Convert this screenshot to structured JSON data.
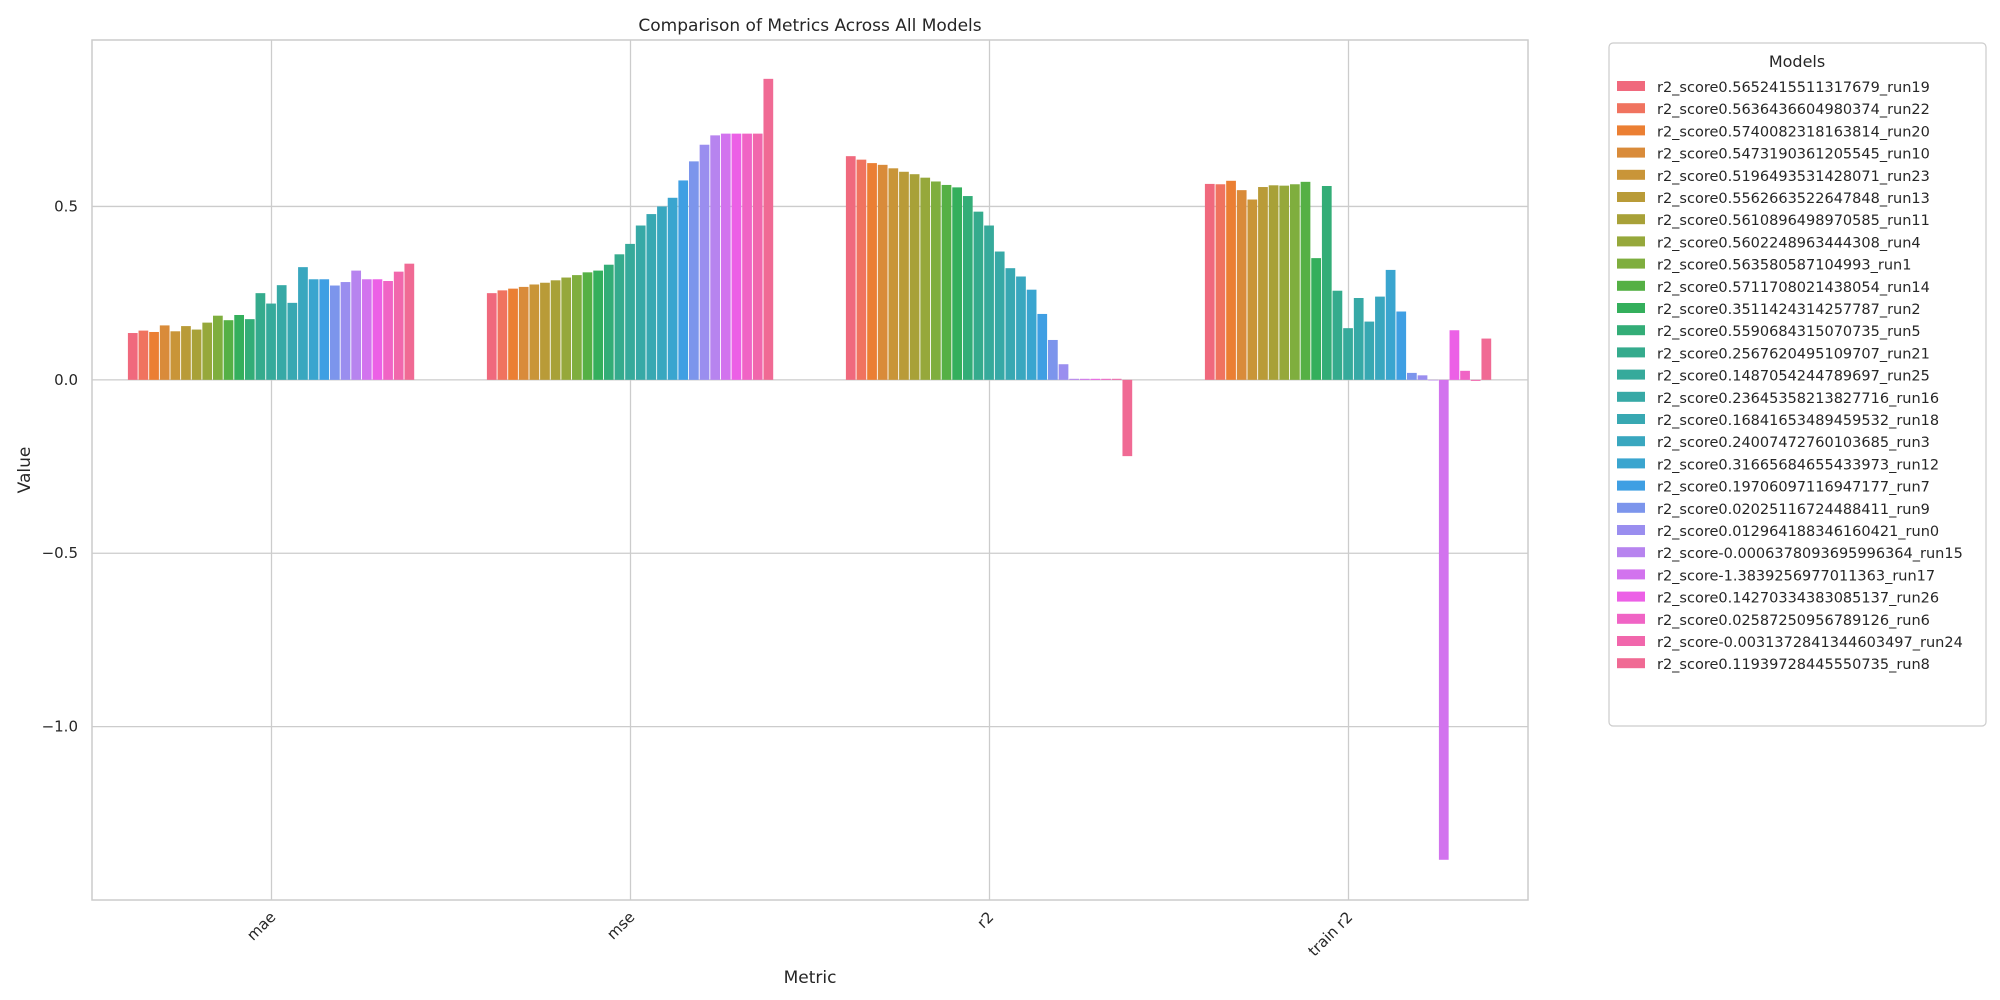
{
  "chart_data": {
    "type": "bar",
    "title": "Comparison of Metrics Across All Models",
    "xlabel": "Metric",
    "ylabel": "Value",
    "categories": [
      "mae",
      "mse",
      "r2",
      "train r2"
    ],
    "ylim": [
      -1.5,
      0.98
    ],
    "yticks": [
      0.5,
      0.0,
      -0.5,
      -1.0
    ],
    "ytick_labels": [
      "0.5",
      "0.0",
      "−0.5",
      "−1.0"
    ],
    "grid": true,
    "legend_title": "Models",
    "legend_position": "outside-right",
    "series": [
      {
        "name": "r2_score0.5652415511317679_run19",
        "color": "#f0697d",
        "values": [
          0.135,
          0.25,
          0.645,
          0.565
        ]
      },
      {
        "name": "r2_score0.5636436604980374_run22",
        "color": "#f0735f",
        "values": [
          0.142,
          0.258,
          0.635,
          0.564
        ]
      },
      {
        "name": "r2_score0.5740082318163814_run20",
        "color": "#eb7f33",
        "values": [
          0.138,
          0.263,
          0.625,
          0.574
        ]
      },
      {
        "name": "r2_score0.5473190361205545_run10",
        "color": "#d98b3a",
        "values": [
          0.157,
          0.268,
          0.62,
          0.547
        ]
      },
      {
        "name": "r2_score0.5196493531428071_run23",
        "color": "#c99538",
        "values": [
          0.14,
          0.275,
          0.61,
          0.52
        ]
      },
      {
        "name": "r2_score0.5562663522647848_run13",
        "color": "#b99b38",
        "values": [
          0.155,
          0.28,
          0.6,
          0.556
        ]
      },
      {
        "name": "r2_score0.5610896498970585_run11",
        "color": "#a8a138",
        "values": [
          0.145,
          0.287,
          0.593,
          0.561
        ]
      },
      {
        "name": "r2_score0.5602248963444308_run4",
        "color": "#96a83b",
        "values": [
          0.165,
          0.295,
          0.583,
          0.56
        ]
      },
      {
        "name": "r2_score0.563580587104993_run1",
        "color": "#7fae3e",
        "values": [
          0.185,
          0.302,
          0.572,
          0.564
        ]
      },
      {
        "name": "r2_score0.5711708021438054_run14",
        "color": "#55b045",
        "values": [
          0.172,
          0.31,
          0.562,
          0.571
        ]
      },
      {
        "name": "r2_score0.3511424314257787_run2",
        "color": "#34af5c",
        "values": [
          0.187,
          0.315,
          0.555,
          0.351
        ]
      },
      {
        "name": "r2_score0.5590684315070735_run5",
        "color": "#33ad77",
        "values": [
          0.175,
          0.332,
          0.53,
          0.559
        ]
      },
      {
        "name": "r2_score0.2567620495109707_run21",
        "color": "#35ab8d",
        "values": [
          0.25,
          0.362,
          0.485,
          0.257
        ]
      },
      {
        "name": "r2_score0.1487054244789697_run25",
        "color": "#36aa9b",
        "values": [
          0.22,
          0.392,
          0.445,
          0.149
        ]
      },
      {
        "name": "r2_score0.23645358213827716_run16",
        "color": "#37a9a6",
        "values": [
          0.273,
          0.445,
          0.37,
          0.236
        ]
      },
      {
        "name": "r2_score0.16841653489459532_run18",
        "color": "#38a8b2",
        "values": [
          0.222,
          0.478,
          0.322,
          0.168
        ]
      },
      {
        "name": "r2_score0.24007472760103685_run3",
        "color": "#39a7bf",
        "values": [
          0.325,
          0.5,
          0.298,
          0.24
        ]
      },
      {
        "name": "r2_score0.31665684655433973_run12",
        "color": "#3aa5cf",
        "values": [
          0.29,
          0.525,
          0.26,
          0.317
        ]
      },
      {
        "name": "r2_score0.19706097116947177_run7",
        "color": "#3f9fe3",
        "values": [
          0.29,
          0.575,
          0.19,
          0.197
        ]
      },
      {
        "name": "r2_score0.02025116724488411_run9",
        "color": "#7c95ec",
        "values": [
          0.272,
          0.63,
          0.115,
          0.02
        ]
      },
      {
        "name": "r2_score0.012964188346160421_run0",
        "color": "#9a8eef",
        "values": [
          0.282,
          0.678,
          0.045,
          0.013
        ]
      },
      {
        "name": "r2_score-0.0006378093695996364_run15",
        "color": "#b784ef",
        "values": [
          0.315,
          0.705,
          0.003,
          -0.0006
        ]
      },
      {
        "name": "r2_score-1.3839256977011363_run17",
        "color": "#d273ee",
        "values": [
          0.29,
          0.71,
          0.003,
          -1.384
        ]
      },
      {
        "name": "r2_score0.14270334383085137_run26",
        "color": "#ec60e6",
        "values": [
          0.29,
          0.71,
          0.003,
          0.143
        ]
      },
      {
        "name": "r2_score0.02587250956789126_run6",
        "color": "#f064c5",
        "values": [
          0.285,
          0.71,
          0.003,
          0.026
        ]
      },
      {
        "name": "r2_score-0.0031372841344603497_run24",
        "color": "#f167ac",
        "values": [
          0.312,
          0.71,
          0.003,
          -0.003
        ]
      },
      {
        "name": "r2_score0.11939728445550735_run8",
        "color": "#f06a94",
        "values": [
          0.335,
          0.868,
          -0.22,
          0.119
        ]
      }
    ]
  }
}
